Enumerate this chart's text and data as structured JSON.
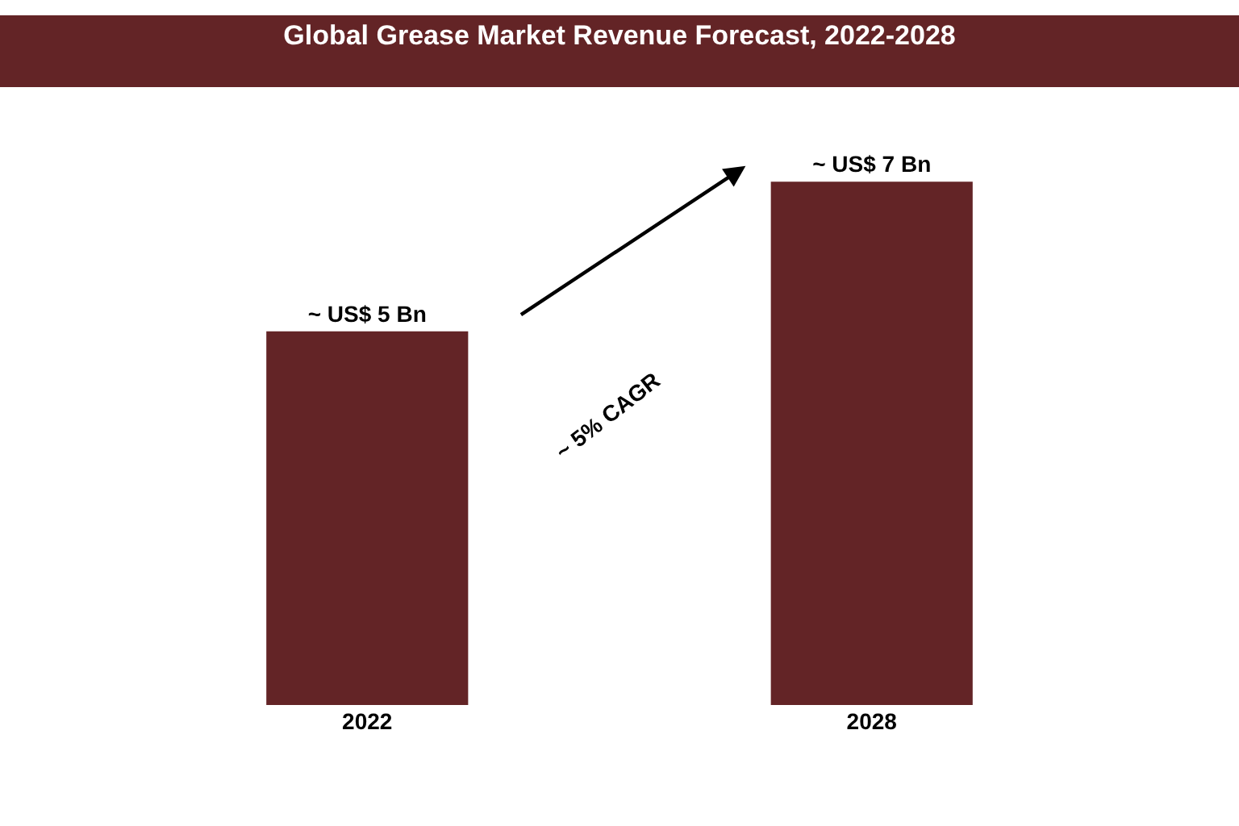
{
  "chart_data": {
    "type": "bar",
    "title": "Global Grease Market Revenue Forecast, 2022-2028",
    "categories": [
      "2022",
      "2028"
    ],
    "values": [
      5,
      7
    ],
    "value_labels": [
      "~ US$ 5 Bn",
      "~ US$ 7 Bn"
    ],
    "color": "#632426",
    "annotations": [
      "~ 5% CAGR"
    ],
    "grid": false
  }
}
